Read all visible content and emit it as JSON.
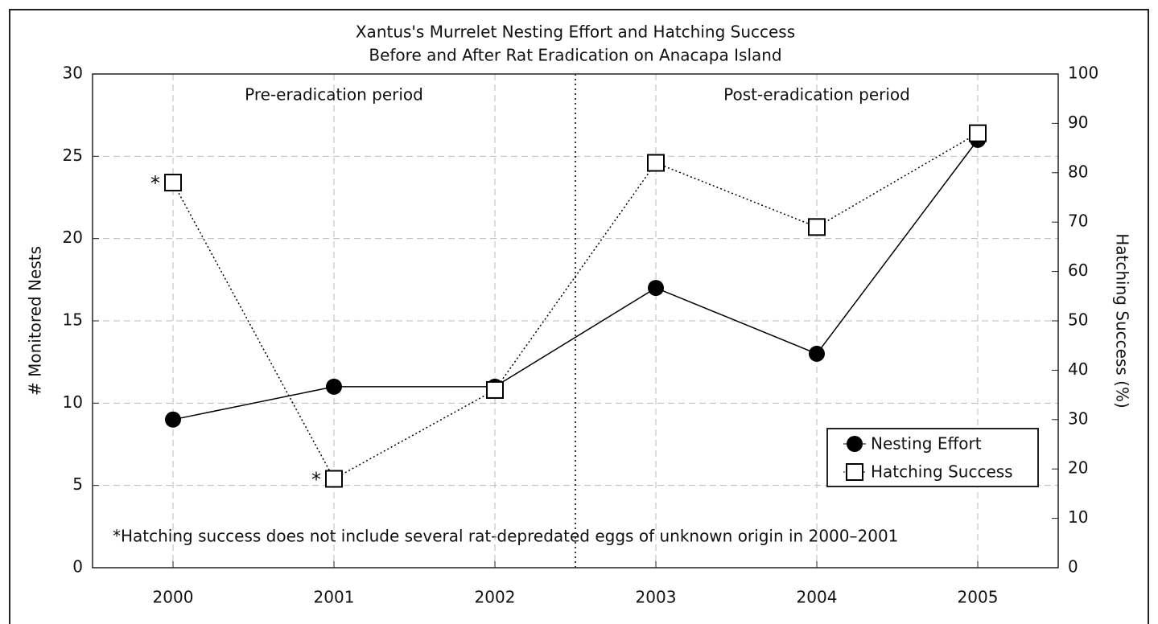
{
  "chart_data": {
    "type": "line",
    "title": "Xantus's Murrelet Nesting Effort and Hatching Success",
    "subtitle": "Before and After Rat Eradication on Anacapa Island",
    "ylabel": "# Monitored Nests",
    "y2label": "Hatching Success (%)",
    "x": [
      2000,
      2001,
      2002,
      2003,
      2004,
      2005
    ],
    "xlim": [
      1999.5,
      2005.5
    ],
    "xticks": [
      2000,
      2001,
      2002,
      2003,
      2004,
      2005
    ],
    "ylim": [
      0,
      30
    ],
    "yticks": [
      0,
      5,
      10,
      15,
      20,
      25,
      30
    ],
    "y2lim": [
      0,
      100
    ],
    "y2ticks": [
      0,
      10,
      20,
      30,
      40,
      50,
      60,
      70,
      80,
      90,
      100
    ],
    "grid": true,
    "legend": "lower right",
    "series": [
      {
        "name": "Nesting Effort",
        "color": "#000000",
        "marker": "circle",
        "linestyle": "solid",
        "values": [
          9,
          11,
          11,
          17,
          13,
          26
        ]
      },
      {
        "name": "Hatching Success",
        "color": "#000000",
        "marker": "square",
        "linestyle": "dotted",
        "axis": "y2",
        "values": [
          78,
          18,
          36,
          82,
          69,
          88
        ]
      }
    ],
    "period_labels": [
      "Pre-eradication period",
      "Post-eradication period"
    ],
    "annotations": [
      {
        "text": "*",
        "x": 2000
      },
      {
        "text": "*",
        "x": 2001
      }
    ],
    "footnote": "*Hatching success does not include several rat-depredated eggs of unknown origin in 2000–2001"
  }
}
